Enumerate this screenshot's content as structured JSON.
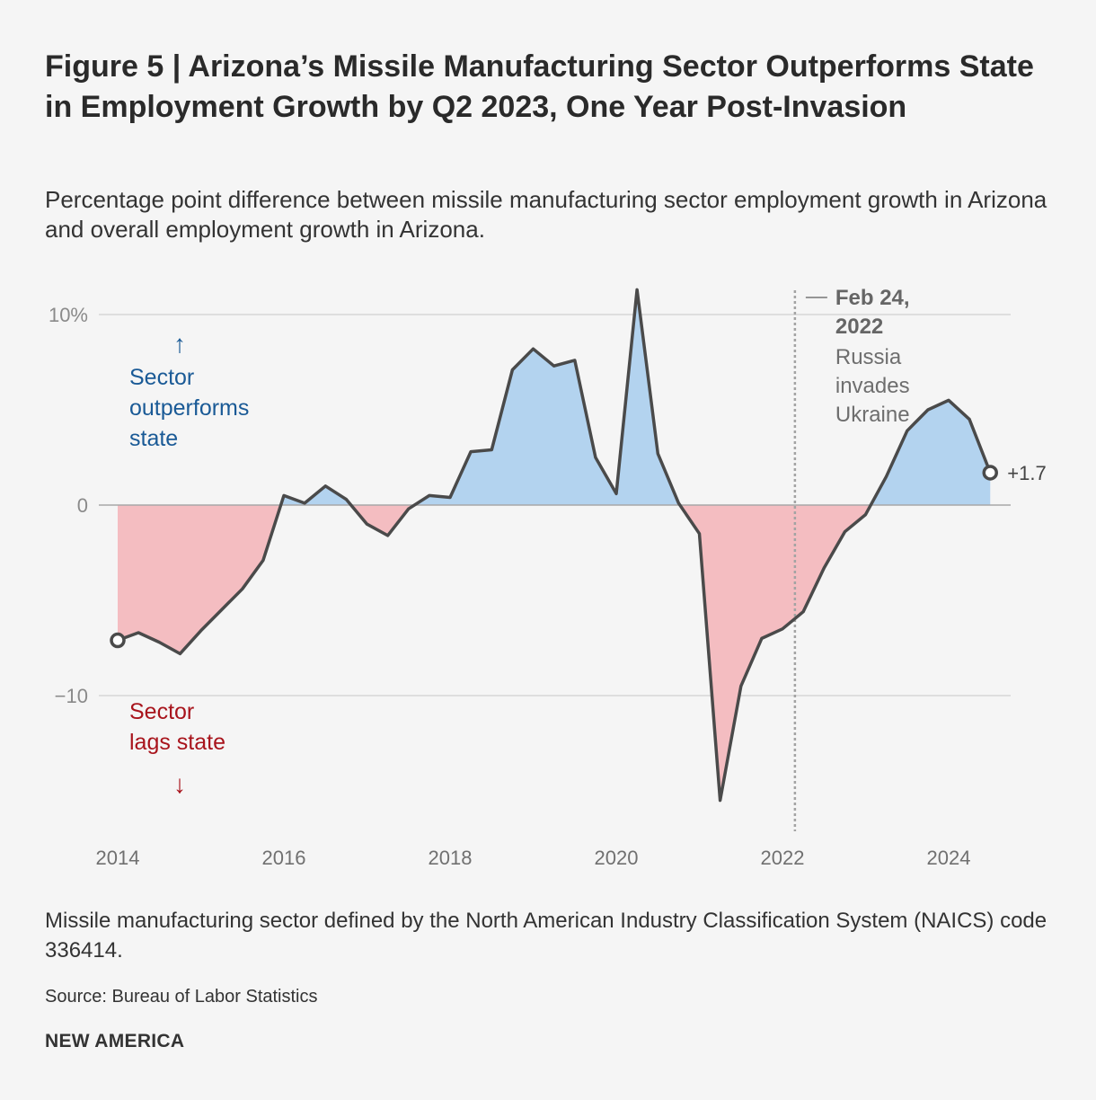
{
  "title": "Figure 5 | Arizona’s Missile Manufacturing Sector Outperforms State in Employment Growth by Q2 2023, One Year Post-Invasion",
  "subtitle": "Percentage point difference between missile manufacturing sector employment growth in Arizona and overall employment growth in Arizona.",
  "note": "Missile manufacturing sector defined by the North American Industry Classification System (NAICS) code 336414.",
  "source": "Source: Bureau of Labor Statistics",
  "brand": "NEW AMERICA",
  "chart_data": {
    "type": "area",
    "x_ticks": [
      "2014",
      "2016",
      "2018",
      "2020",
      "2022",
      "2024"
    ],
    "y_ticks": [
      "10%",
      "0",
      "−10"
    ],
    "ylim": [
      -17,
      12
    ],
    "grid": true,
    "colors": {
      "positive_fill": "#b3d3ef",
      "negative_fill": "#f4bdc1",
      "line": "#4a4a4a",
      "outperform_text": "#1a5a96",
      "lag_text": "#a8141c"
    },
    "annotations": {
      "up_arrow": "↑",
      "outperforms": [
        "Sector",
        "outperforms",
        "state"
      ],
      "down_arrow": "↓",
      "lags": [
        "Sector",
        "lags state"
      ],
      "event_date": [
        "Feb 24,",
        "2022"
      ],
      "event_text": [
        "Russia",
        "invades",
        "Ukraine"
      ],
      "end_label": "+1.7"
    },
    "event_x": 2022.15,
    "end_value": 1.7,
    "series": [
      {
        "x": [
          2014.0,
          2014.25,
          2014.5,
          2014.75,
          2015.0,
          2015.25,
          2015.5,
          2015.75,
          2016.0,
          2016.25,
          2016.5,
          2016.75,
          2017.0,
          2017.25,
          2017.5,
          2017.75,
          2018.0,
          2018.25,
          2018.5,
          2018.75,
          2019.0,
          2019.25,
          2019.5,
          2019.75,
          2020.0,
          2020.25,
          2020.5,
          2020.75,
          2021.0,
          2021.25,
          2021.5,
          2021.75,
          2022.0,
          2022.25,
          2022.5,
          2022.75,
          2023.0,
          2023.25,
          2023.5,
          2023.75,
          2024.0,
          2024.25,
          2024.5
        ],
        "y": [
          -7.1,
          -6.7,
          -7.2,
          -7.8,
          -6.6,
          -5.5,
          -4.4,
          -2.9,
          0.5,
          0.1,
          1.0,
          0.3,
          -1.0,
          -1.6,
          -0.2,
          0.5,
          0.4,
          2.8,
          2.9,
          7.1,
          8.2,
          7.3,
          7.6,
          2.5,
          0.6,
          11.3,
          2.7,
          0.1,
          -1.5,
          -15.5,
          -9.5,
          -7.0,
          -6.5,
          -5.6,
          -3.3,
          -1.4,
          -0.5,
          1.5,
          3.9,
          5.0,
          5.5,
          4.5,
          1.7
        ]
      }
    ]
  }
}
